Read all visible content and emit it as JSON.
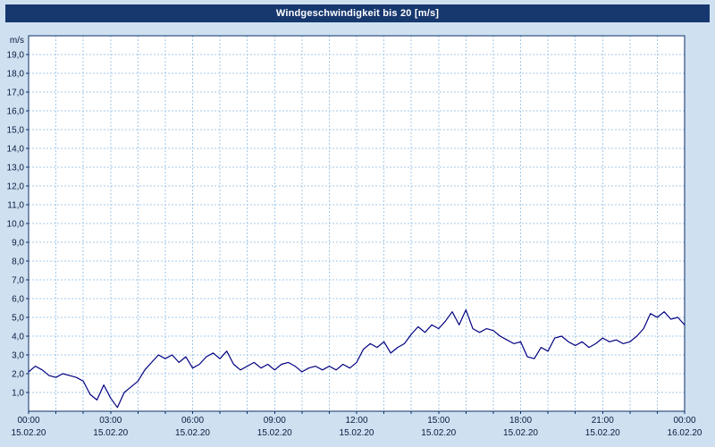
{
  "chart_data": {
    "type": "line",
    "title": "Windgeschwindigkeit bis 20 [m/s]",
    "ylabel": "m/s",
    "ylim": [
      0,
      20
    ],
    "grid": "dashed",
    "legend": "none",
    "ytick_labels": [
      "1,0",
      "2,0",
      "3,0",
      "4,0",
      "5,0",
      "6,0",
      "7,0",
      "8,0",
      "9,0",
      "10,0",
      "11,0",
      "12,0",
      "13,0",
      "14,0",
      "15,0",
      "16,0",
      "17,0",
      "18,0",
      "19,0"
    ],
    "xticks": [
      {
        "hour": 0,
        "time": "00:00",
        "date": "15.02.20"
      },
      {
        "hour": 3,
        "time": "03:00",
        "date": "15.02.20"
      },
      {
        "hour": 6,
        "time": "06:00",
        "date": "15.02.20"
      },
      {
        "hour": 9,
        "time": "09:00",
        "date": "15.02.20"
      },
      {
        "hour": 12,
        "time": "12:00",
        "date": "15.02.20"
      },
      {
        "hour": 15,
        "time": "15:00",
        "date": "15.02.20"
      },
      {
        "hour": 18,
        "time": "18:00",
        "date": "15.02.20"
      },
      {
        "hour": 21,
        "time": "21:00",
        "date": "15.02.20"
      },
      {
        "hour": 24,
        "time": "00:00",
        "date": "16.02.20"
      }
    ],
    "x_minor_step_hours": 1,
    "series": [
      {
        "name": "Windgeschwindigkeit [m/s]",
        "x_start_hour": 0,
        "x_step_hours": 0.25,
        "values": [
          2.1,
          2.4,
          2.2,
          1.9,
          1.8,
          2.0,
          1.9,
          1.8,
          1.6,
          0.9,
          0.6,
          1.4,
          0.7,
          0.2,
          1.0,
          1.3,
          1.6,
          2.2,
          2.6,
          3.0,
          2.8,
          3.0,
          2.6,
          2.9,
          2.3,
          2.5,
          2.9,
          3.1,
          2.8,
          3.2,
          2.5,
          2.2,
          2.4,
          2.6,
          2.3,
          2.5,
          2.2,
          2.5,
          2.6,
          2.4,
          2.1,
          2.3,
          2.4,
          2.2,
          2.4,
          2.2,
          2.5,
          2.3,
          2.6,
          3.3,
          3.6,
          3.4,
          3.7,
          3.1,
          3.4,
          3.6,
          4.1,
          4.5,
          4.2,
          4.6,
          4.4,
          4.8,
          5.3,
          4.6,
          5.4,
          4.4,
          4.2,
          4.4,
          4.3,
          4.0,
          3.8,
          3.6,
          3.7,
          2.9,
          2.8,
          3.4,
          3.2,
          3.9,
          4.0,
          3.7,
          3.5,
          3.7,
          3.4,
          3.6,
          3.9,
          3.7,
          3.8,
          3.6,
          3.7,
          4.0,
          4.4,
          5.2,
          5.0,
          5.3,
          4.9,
          5.0,
          4.6
        ]
      }
    ],
    "colors": {
      "titlebar_bg": "#17386f",
      "background": "#cfe1f1",
      "plot_bg": "#ffffff",
      "grid": "#a3c9e8",
      "axis": "#0b2d66",
      "line": "#000080",
      "label_text": "#061a3d"
    }
  }
}
